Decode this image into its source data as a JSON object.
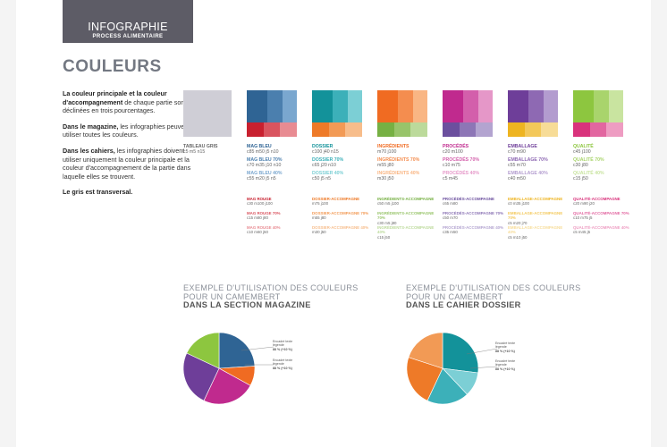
{
  "header": {
    "title": "INFOGRAPHIE",
    "subtitle": "PROCESS ALIMENTAIRE"
  },
  "heading": "COULEURS",
  "intro": {
    "p1_bold": "La couleur principale et la couleur d'accompagnement",
    "p1_rest": " de chaque partie sont déclinées en trois pourcentages.",
    "p2_bold": "Dans le magazine,",
    "p2_rest": " les infographies peuvent utiliser toutes les couleurs.",
    "p3_bold": "Dans les cahiers,",
    "p3_rest": " les infographies doivent utiliser uniquement la couleur principale et la couleur d'accompagnement  de la partie dans laquelle elles se trouvent.",
    "p4_bold": "Le gris est transversal."
  },
  "gray": {
    "name": "TABLEAU GRIS",
    "code": "c5 m5 n15",
    "color": "#cfced6"
  },
  "groups": [
    {
      "key": "mag",
      "main": [
        "#2f6494",
        "#4b7fae",
        "#7aa7cf"
      ],
      "accent": [
        "#c8202f",
        "#d9545f",
        "#e88b92"
      ],
      "labels": [
        {
          "name": "MAG BLEU",
          "code": "c85 m50 j5 n10",
          "color": "#2f6494"
        },
        {
          "name": "MAG BLEU 70%",
          "code": "c70 m35 j10 n10",
          "color": "#4b7fae"
        },
        {
          "name": "MAG BLEU 40%",
          "code": "c55 m20 j5 n5",
          "color": "#7aa7cf"
        }
      ],
      "minis": [
        {
          "name": "MAG ROUGE",
          "code": "c30 m100 j100",
          "color": "#c8202f"
        },
        {
          "name": "MAG ROUGE 70%",
          "code": "c15 m80 j80",
          "color": "#d9545f"
        },
        {
          "name": "MAG ROUGE 40%",
          "code": "c10 m60 j50",
          "color": "#e88b92"
        }
      ]
    },
    {
      "key": "dossier",
      "main": [
        "#13929a",
        "#3cb0b9",
        "#7ccfd5"
      ],
      "accent": [
        "#ee7a28",
        "#f29a55",
        "#f7bd8b"
      ],
      "labels": [
        {
          "name": "DOSSIER",
          "code": "c100 j40 n15",
          "color": "#13929a"
        },
        {
          "name": "DOSSIER 70%",
          "code": "c65 j20 n10",
          "color": "#3cb0b9"
        },
        {
          "name": "DOSSIER 40%",
          "code": "c50 j5 n5",
          "color": "#7ccfd5"
        }
      ],
      "minis": [
        {
          "name": "DOSSIER-ACCOMPAGNE",
          "code": "m75 j100",
          "color": "#ee7a28"
        },
        {
          "name": "DOSSIER-ACCOMPAGNE 70%",
          "code": "m55 j80",
          "color": "#f29a55"
        },
        {
          "name": "DOSSIER-ACCOMPAGNE 40%",
          "code": "m30 j50",
          "color": "#f7bd8b"
        }
      ]
    },
    {
      "key": "ingredients",
      "main": [
        "#f06b22",
        "#f48d4f",
        "#f9b684"
      ],
      "accent": [
        "#76b043",
        "#98c46a",
        "#bcda9b"
      ],
      "labels": [
        {
          "name": "INGRÉDIENTS",
          "code": "m70 j100",
          "color": "#f06b22"
        },
        {
          "name": "INGRÉDIENTS 70%",
          "code": "m55 j80",
          "color": "#f48d4f"
        },
        {
          "name": "INGRÉDIENTS 40%",
          "code": "m30 j50",
          "color": "#f9b684"
        }
      ],
      "minis": [
        {
          "name": "INGRÉDIENTS-ACCOMPAGNE",
          "code": "c50 m5 j100",
          "color": "#76b043"
        },
        {
          "name": "INGRÉDIENTS-ACCOMPAGNE 70%",
          "code": "c30 m5 j80",
          "color": "#98c46a"
        },
        {
          "name": "INGRÉDIENTS-ACCOMPAGNE 40%",
          "code": "c15 j50",
          "color": "#bcda9b"
        }
      ]
    },
    {
      "key": "procedes",
      "main": [
        "#c02a8e",
        "#d35fab",
        "#e597c8"
      ],
      "accent": [
        "#6b4f9e",
        "#8d76b6",
        "#b3a4d0"
      ],
      "labels": [
        {
          "name": "PROCÉDÉS",
          "code": "c20 m100",
          "color": "#c02a8e"
        },
        {
          "name": "PROCÉDÉS 70%",
          "code": "c10 m75",
          "color": "#d35fab"
        },
        {
          "name": "PROCÉDÉS 40%",
          "code": "c5 m45",
          "color": "#e597c8"
        }
      ],
      "minis": [
        {
          "name": "PROCÉDÉS-ACCOMPAGNE",
          "code": "c65 m80",
          "color": "#6b4f9e"
        },
        {
          "name": "PROCÉDÉS-ACCOMPAGNE 70%",
          "code": "c50 m70",
          "color": "#8d76b6"
        },
        {
          "name": "PROCÉDÉS-ACCOMPAGNE 40%",
          "code": "c35 m50",
          "color": "#b3a4d0"
        }
      ]
    },
    {
      "key": "emballage",
      "main": [
        "#6e3e99",
        "#8e69b3",
        "#b39ccf"
      ],
      "accent": [
        "#eeb420",
        "#f3c85a",
        "#f7dc97"
      ],
      "labels": [
        {
          "name": "EMBALLAGE",
          "code": "c70 m90",
          "color": "#6e3e99"
        },
        {
          "name": "EMBALLAGE 70%",
          "code": "c55 m70",
          "color": "#8e69b3"
        },
        {
          "name": "EMBALLAGE 40%",
          "code": "c40 m50",
          "color": "#b39ccf"
        }
      ],
      "minis": [
        {
          "name": "EMBALLAGE-ACCOMPAGNE",
          "code": "c0 m35 j100",
          "color": "#eeb420"
        },
        {
          "name": "EMBALLAGE-ACCOMPAGNE 70%",
          "code": "c5 m20 j70",
          "color": "#f3c85a"
        },
        {
          "name": "EMBALLAGE-ACCOMPAGNE 40%",
          "code": "c5 m10 j50",
          "color": "#f7dc97"
        }
      ]
    },
    {
      "key": "qualite",
      "main": [
        "#8dc63f",
        "#a9d46c",
        "#c9e4a0"
      ],
      "accent": [
        "#d9337c",
        "#e266a0",
        "#ee9cc2"
      ],
      "labels": [
        {
          "name": "QUALITÉ",
          "code": "c45 j100",
          "color": "#8dc63f"
        },
        {
          "name": "QUALITÉ 70%",
          "code": "c30 j80",
          "color": "#a9d46c"
        },
        {
          "name": "QUALITÉ 40%",
          "code": "c15 j50",
          "color": "#c9e4a0"
        }
      ],
      "minis": [
        {
          "name": "QUALITÉ-ACCOMPAGNE",
          "code": "c20 m90 j20",
          "color": "#d9337c"
        },
        {
          "name": "QUALITÉ-ACCOMPAGNE 70%",
          "code": "c10 m75 j5",
          "color": "#e266a0"
        },
        {
          "name": "QUALITÉ-ACCOMPAGNE 40%",
          "code": "c5 m45 j5",
          "color": "#ee9cc2"
        }
      ]
    }
  ],
  "pie1": {
    "title_l1": "EXEMPLE D'UTILISATION DES COULEURS",
    "title_l2": "POUR UN CAMEMBERT",
    "title_l3": "DANS LA SECTION MAGAZINE",
    "legend1_l1": "Encadré texte",
    "legend1_l2": "légende",
    "legend1_l3": "88 % (+10 %)",
    "legend2_l1": "Encadré texte",
    "legend2_l2": "légende",
    "legend2_l3": "88 % (+10 %)"
  },
  "pie2": {
    "title_l1": "EXEMPLE D'UTILISATION DES COULEURS",
    "title_l2": "POUR UN CAMEMBERT",
    "title_l3": "DANS LE CAHIER DOSSIER",
    "legend1_l1": "Encadré texte",
    "legend1_l2": "légende",
    "legend1_l3": "88 % (+10 %)",
    "legend2_l1": "Encadré texte",
    "legend2_l2": "légende",
    "legend2_l3": "88 % (+10 %)"
  },
  "chart_data": [
    {
      "type": "pie",
      "values": [
        24,
        9,
        24,
        25,
        18
      ],
      "colors": [
        "#2f6494",
        "#f06b22",
        "#c02a8e",
        "#6e3e99",
        "#8dc63f"
      ]
    },
    {
      "type": "pie",
      "values": [
        27,
        11,
        19,
        23,
        20
      ],
      "colors": [
        "#13929a",
        "#7ccfd5",
        "#3cb0b9",
        "#ee7a28",
        "#f29a55"
      ]
    }
  ]
}
